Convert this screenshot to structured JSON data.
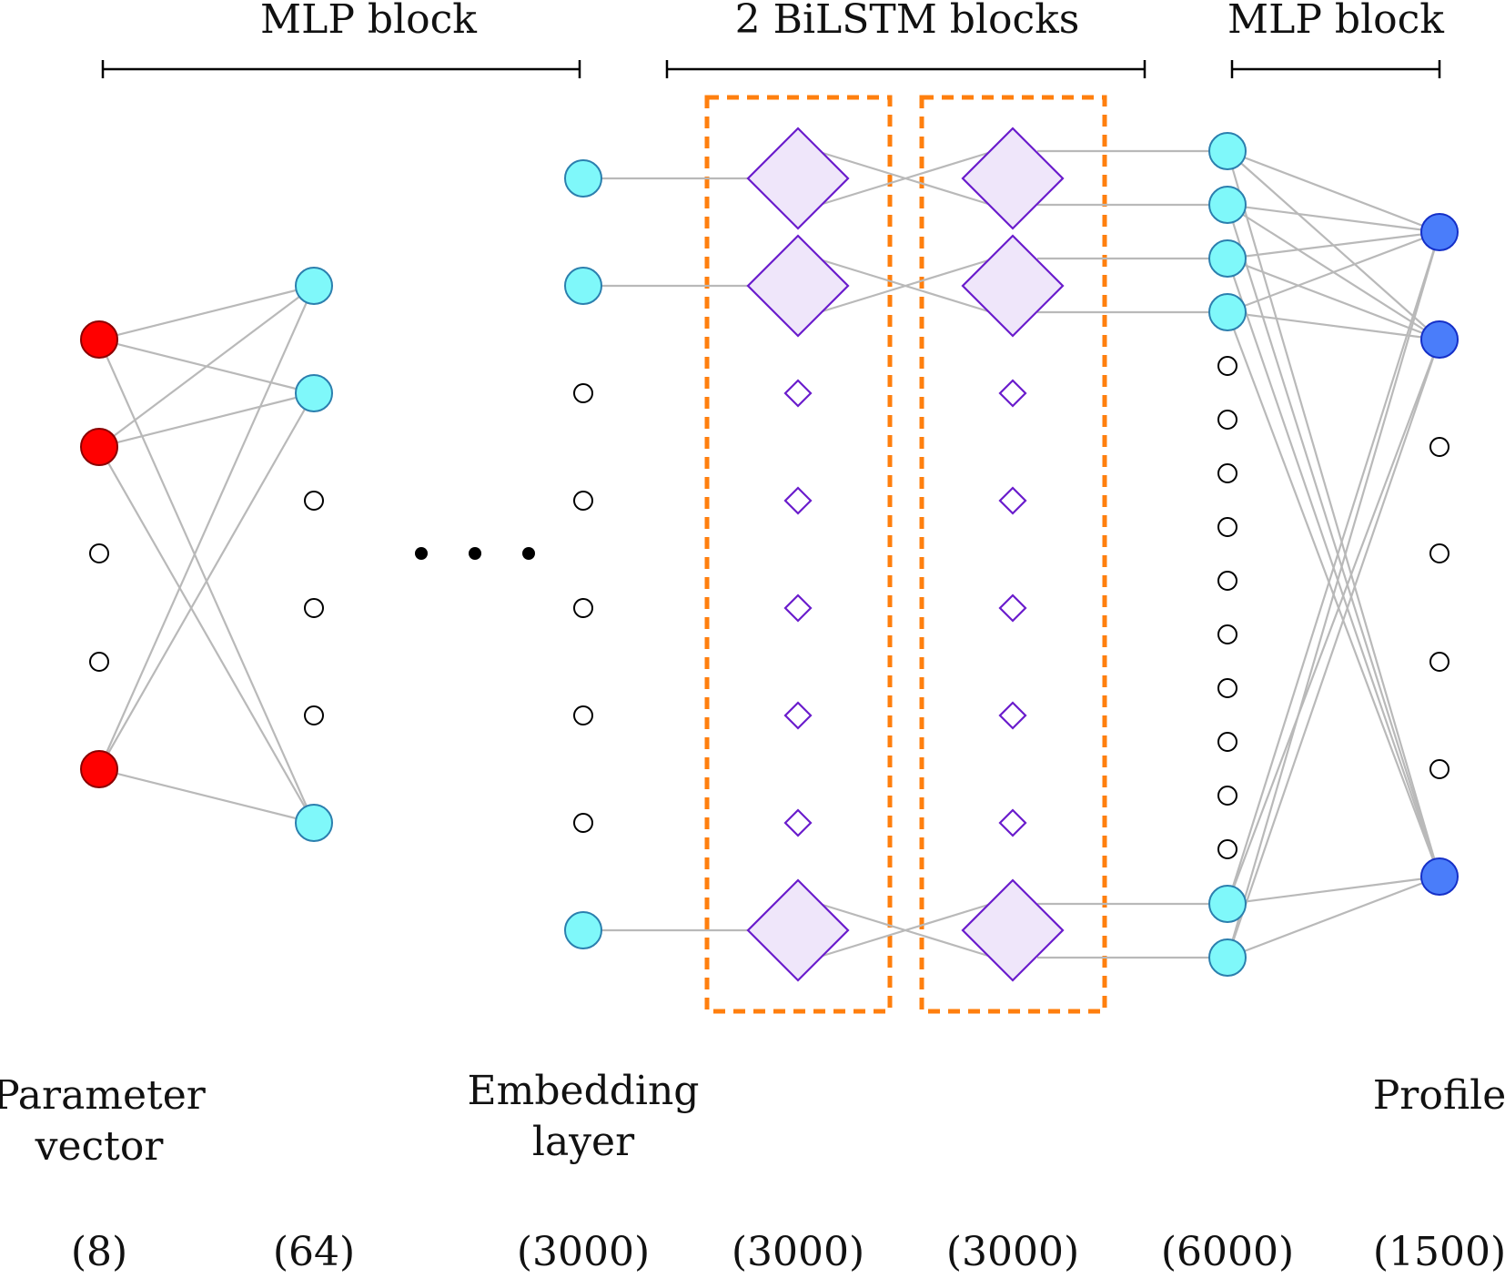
{
  "header": {
    "mlp_block_left": "MLP block",
    "bilstm_blocks": "2 BiLSTM blocks",
    "mlp_block_right": "MLP block"
  },
  "layers": [
    {
      "id": "input",
      "label_lines": [
        "Parameter",
        "vector"
      ],
      "size": "(8)"
    },
    {
      "id": "hidden1",
      "label_lines": [],
      "size": "(64)"
    },
    {
      "id": "embedding",
      "label_lines": [
        "Embedding",
        "layer"
      ],
      "size": "(3000)"
    },
    {
      "id": "bilstm1",
      "label_lines": [],
      "size": "(3000)"
    },
    {
      "id": "bilstm2",
      "label_lines": [],
      "size": "(3000)"
    },
    {
      "id": "hidden2",
      "label_lines": [],
      "size": "(6000)"
    },
    {
      "id": "profile",
      "label_lines": [
        "Profile"
      ],
      "size": "(1500)"
    }
  ],
  "colors": {
    "input_node": "#ff0000",
    "hidden_node": "#7ff8fa",
    "output_node": "#4a7dfa",
    "lstm_cell": "#efe6fa",
    "lstm_border": "#6a1ccc",
    "block_box": "#ff7f0e",
    "edge": "#b9b9b9"
  }
}
